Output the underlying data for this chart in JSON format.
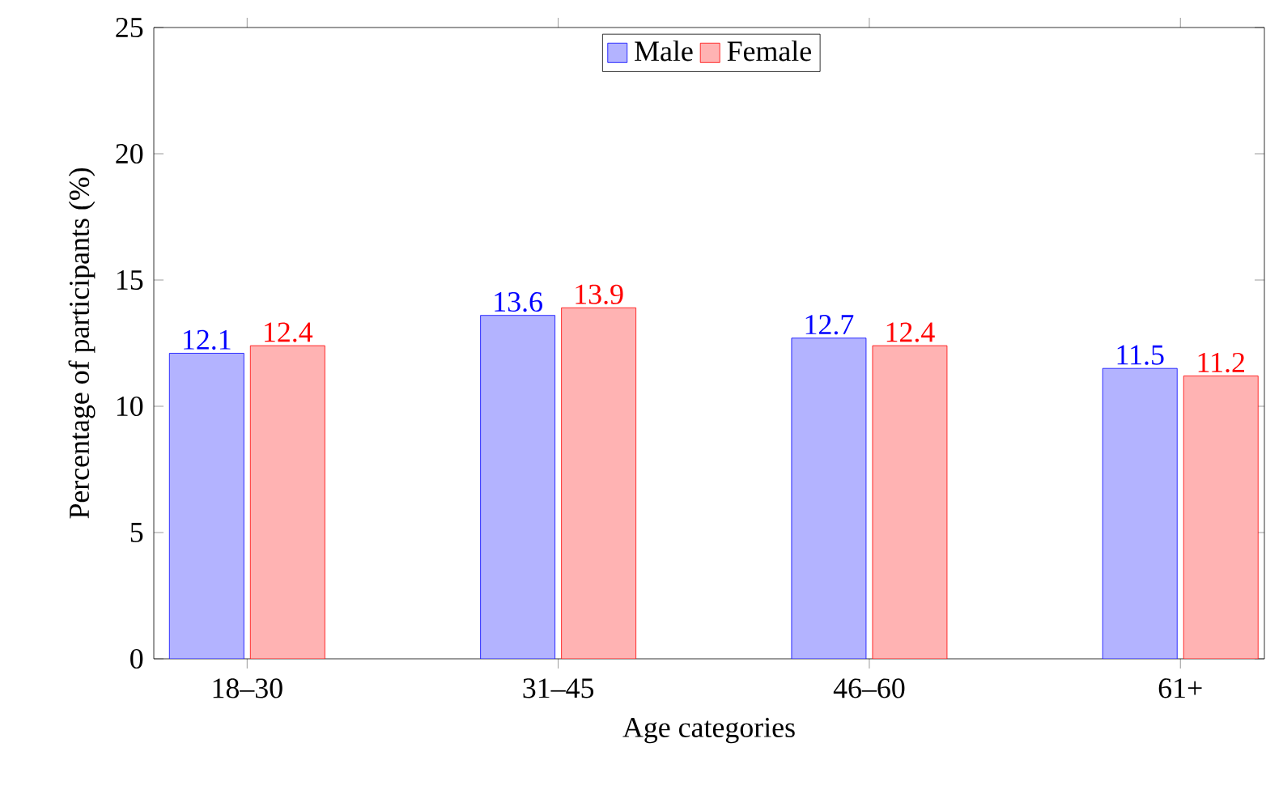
{
  "chart_data": {
    "type": "bar",
    "xlabel": "Age categories",
    "ylabel": "Percentage of participants (%)",
    "categories": [
      "18–30",
      "31–45",
      "46–60",
      "61+"
    ],
    "series": [
      {
        "name": "Male",
        "color": "#b3b3ff",
        "values": [
          12.1,
          13.6,
          12.7,
          11.5
        ]
      },
      {
        "name": "Female",
        "color": "#ffb3b3",
        "values": [
          12.4,
          13.9,
          12.4,
          11.2
        ]
      }
    ],
    "ylim": [
      0,
      25
    ],
    "yticks": [
      0,
      5,
      10,
      15,
      20,
      25
    ],
    "legend": "top",
    "data_labels": true
  }
}
